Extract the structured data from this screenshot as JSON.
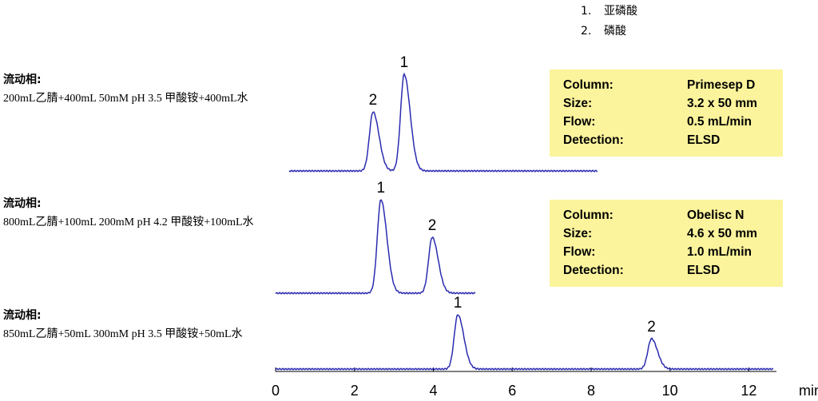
{
  "legend": [
    {
      "number": "1.",
      "name": "亚磷酸"
    },
    {
      "number": "2.",
      "name": "磷酸"
    }
  ],
  "chart_data": {
    "type": "chromatogram",
    "xlabel": "min",
    "xlim": [
      0,
      12.7
    ],
    "xticks": [
      0,
      2,
      4,
      6,
      8,
      10,
      12
    ],
    "traces": [
      {
        "mobile_phase_label": "流动相:",
        "mobile_phase": "200mL乙腈+400mL 50mM pH 3.5 甲酸铵+400mL水",
        "peaks": [
          {
            "label": "2",
            "x": 2.47
          },
          {
            "label": "1",
            "x": 3.26
          }
        ],
        "conditions": [
          {
            "key": "Column:",
            "value": "Primesep D"
          },
          {
            "key": "Size:",
            "value": "3.2 x 50 mm"
          },
          {
            "key": "Flow:",
            "value": "0.5 mL/min"
          },
          {
            "key": "Detection:",
            "value": "ELSD"
          }
        ]
      },
      {
        "mobile_phase_label": "流动相:",
        "mobile_phase": "800mL乙腈+100mL 200mM pH 4.2 甲酸铵+100mL水",
        "peaks": [
          {
            "label": "1",
            "x": 2.67
          },
          {
            "label": "2",
            "x": 3.97
          }
        ],
        "conditions": [
          {
            "key": "Column:",
            "value": "Obelisc N"
          },
          {
            "key": "Size:",
            "value": "4.6 x 50 mm"
          },
          {
            "key": "Flow:",
            "value": "1.0 mL/min"
          },
          {
            "key": "Detection:",
            "value": "ELSD"
          }
        ]
      },
      {
        "mobile_phase_label": "流动相:",
        "mobile_phase": "850mL乙腈+50mL 300mM pH 3.5 甲酸铵+50mL水",
        "peaks": [
          {
            "label": "1",
            "x": 4.62
          },
          {
            "label": "2",
            "x": 9.53
          }
        ]
      }
    ]
  }
}
